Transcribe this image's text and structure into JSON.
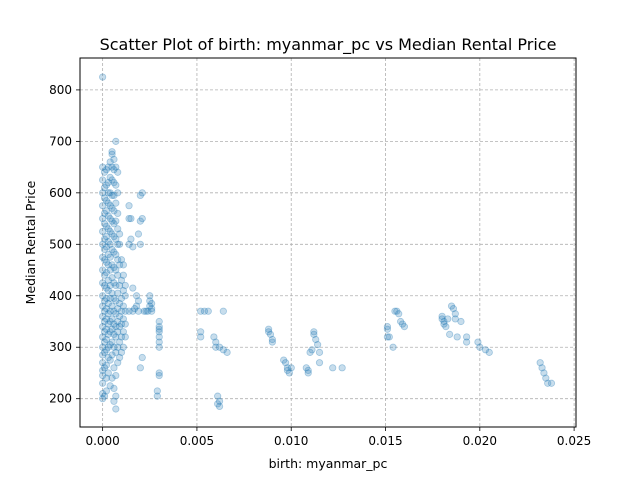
{
  "chart_data": {
    "type": "scatter",
    "title": "Scatter Plot of birth: myanmar_pc vs Median Rental Price",
    "xlabel": "birth: myanmar_pc",
    "ylabel": "Median Rental Price",
    "xlim": [
      -0.0012,
      0.0251
    ],
    "ylim": [
      145,
      862
    ],
    "xticks": [
      0.0,
      0.005,
      0.01,
      0.015,
      0.02,
      0.025
    ],
    "xtick_labels": [
      "0.000",
      "0.005",
      "0.010",
      "0.015",
      "0.020",
      "0.025"
    ],
    "yticks": [
      200,
      300,
      400,
      500,
      600,
      700,
      800
    ],
    "ytick_labels": [
      "200",
      "300",
      "400",
      "500",
      "600",
      "700",
      "800"
    ],
    "grid": true,
    "marker_color": "#1f77b4",
    "marker_alpha": 0.25,
    "series": [
      {
        "points": [
          [
            0.0,
            825
          ],
          [
            0.0,
            200
          ],
          [
            0.0,
            210
          ],
          [
            0.0,
            230
          ],
          [
            0.0,
            245
          ],
          [
            0.0,
            255
          ],
          [
            0.0,
            270
          ],
          [
            0.0,
            285
          ],
          [
            0.0,
            300
          ],
          [
            0.0,
            320
          ],
          [
            0.0,
            340
          ],
          [
            0.0,
            360
          ],
          [
            0.0,
            380
          ],
          [
            0.0,
            400
          ],
          [
            0.0,
            425
          ],
          [
            0.0,
            450
          ],
          [
            0.0,
            475
          ],
          [
            0.0,
            500
          ],
          [
            0.0,
            525
          ],
          [
            0.0,
            550
          ],
          [
            0.0,
            575
          ],
          [
            0.0,
            600
          ],
          [
            0.0,
            625
          ],
          [
            0.0,
            650
          ],
          [
            0.0001,
            205
          ],
          [
            0.0001,
            260
          ],
          [
            0.0001,
            290
          ],
          [
            0.0001,
            310
          ],
          [
            0.0001,
            330
          ],
          [
            0.0001,
            350
          ],
          [
            0.0001,
            370
          ],
          [
            0.0001,
            390
          ],
          [
            0.0001,
            420
          ],
          [
            0.0001,
            440
          ],
          [
            0.0001,
            470
          ],
          [
            0.0001,
            490
          ],
          [
            0.0001,
            510
          ],
          [
            0.0001,
            540
          ],
          [
            0.0001,
            560
          ],
          [
            0.0001,
            590
          ],
          [
            0.0001,
            610
          ],
          [
            0.0001,
            640
          ],
          [
            0.0002,
            215
          ],
          [
            0.0002,
            240
          ],
          [
            0.0002,
            265
          ],
          [
            0.0002,
            295
          ],
          [
            0.0002,
            315
          ],
          [
            0.0002,
            335
          ],
          [
            0.0002,
            355
          ],
          [
            0.0002,
            375
          ],
          [
            0.0002,
            395
          ],
          [
            0.0002,
            415
          ],
          [
            0.0002,
            445
          ],
          [
            0.0002,
            465
          ],
          [
            0.0002,
            495
          ],
          [
            0.0002,
            515
          ],
          [
            0.0002,
            535
          ],
          [
            0.0002,
            565
          ],
          [
            0.0002,
            585
          ],
          [
            0.0002,
            615
          ],
          [
            0.0002,
            645
          ],
          [
            0.0003,
            250
          ],
          [
            0.0003,
            280
          ],
          [
            0.0003,
            300
          ],
          [
            0.0003,
            325
          ],
          [
            0.0003,
            345
          ],
          [
            0.0003,
            365
          ],
          [
            0.0003,
            385
          ],
          [
            0.0003,
            410
          ],
          [
            0.0003,
            430
          ],
          [
            0.0003,
            460
          ],
          [
            0.0003,
            480
          ],
          [
            0.0003,
            505
          ],
          [
            0.0003,
            530
          ],
          [
            0.0003,
            555
          ],
          [
            0.0003,
            580
          ],
          [
            0.0003,
            600
          ],
          [
            0.0003,
            620
          ],
          [
            0.0003,
            650
          ],
          [
            0.0004,
            225
          ],
          [
            0.0004,
            275
          ],
          [
            0.0004,
            305
          ],
          [
            0.0004,
            330
          ],
          [
            0.0004,
            350
          ],
          [
            0.0004,
            370
          ],
          [
            0.0004,
            395
          ],
          [
            0.0004,
            420
          ],
          [
            0.0004,
            450
          ],
          [
            0.0004,
            475
          ],
          [
            0.0004,
            500
          ],
          [
            0.0004,
            525
          ],
          [
            0.0004,
            550
          ],
          [
            0.0004,
            575
          ],
          [
            0.0004,
            600
          ],
          [
            0.0004,
            630
          ],
          [
            0.0004,
            660
          ],
          [
            0.0005,
            240
          ],
          [
            0.0005,
            285
          ],
          [
            0.0005,
            310
          ],
          [
            0.0005,
            335
          ],
          [
            0.0005,
            355
          ],
          [
            0.0005,
            380
          ],
          [
            0.0005,
            405
          ],
          [
            0.0005,
            435
          ],
          [
            0.0005,
            460
          ],
          [
            0.0005,
            490
          ],
          [
            0.0005,
            520
          ],
          [
            0.0005,
            545
          ],
          [
            0.0005,
            570
          ],
          [
            0.0005,
            595
          ],
          [
            0.0005,
            625
          ],
          [
            0.0005,
            650
          ],
          [
            0.0005,
            675
          ],
          [
            0.0005,
            680
          ],
          [
            0.0006,
            195
          ],
          [
            0.0006,
            220
          ],
          [
            0.0006,
            260
          ],
          [
            0.0006,
            300
          ],
          [
            0.0006,
            325
          ],
          [
            0.0006,
            345
          ],
          [
            0.0006,
            370
          ],
          [
            0.0006,
            395
          ],
          [
            0.0006,
            425
          ],
          [
            0.0006,
            455
          ],
          [
            0.0006,
            485
          ],
          [
            0.0006,
            515
          ],
          [
            0.0006,
            540
          ],
          [
            0.0006,
            565
          ],
          [
            0.0006,
            595
          ],
          [
            0.0006,
            620
          ],
          [
            0.0006,
            645
          ],
          [
            0.0006,
            665
          ],
          [
            0.0007,
            180
          ],
          [
            0.0007,
            205
          ],
          [
            0.0007,
            245
          ],
          [
            0.0007,
            290
          ],
          [
            0.0007,
            320
          ],
          [
            0.0007,
            340
          ],
          [
            0.0007,
            365
          ],
          [
            0.0007,
            390
          ],
          [
            0.0007,
            420
          ],
          [
            0.0007,
            450
          ],
          [
            0.0007,
            480
          ],
          [
            0.0007,
            510
          ],
          [
            0.0007,
            545
          ],
          [
            0.0007,
            580
          ],
          [
            0.0007,
            615
          ],
          [
            0.0007,
            650
          ],
          [
            0.0007,
            700
          ],
          [
            0.0008,
            270
          ],
          [
            0.0008,
            300
          ],
          [
            0.0008,
            330
          ],
          [
            0.0008,
            350
          ],
          [
            0.0008,
            375
          ],
          [
            0.0008,
            405
          ],
          [
            0.0008,
            440
          ],
          [
            0.0008,
            470
          ],
          [
            0.0008,
            500
          ],
          [
            0.0008,
            530
          ],
          [
            0.0008,
            560
          ],
          [
            0.0008,
            600
          ],
          [
            0.0008,
            640
          ],
          [
            0.0009,
            280
          ],
          [
            0.0009,
            310
          ],
          [
            0.0009,
            340
          ],
          [
            0.0009,
            360
          ],
          [
            0.0009,
            385
          ],
          [
            0.0009,
            420
          ],
          [
            0.0009,
            460
          ],
          [
            0.0009,
            500
          ],
          [
            0.0009,
            520
          ],
          [
            0.001,
            290
          ],
          [
            0.001,
            320
          ],
          [
            0.001,
            345
          ],
          [
            0.001,
            370
          ],
          [
            0.001,
            395
          ],
          [
            0.001,
            430
          ],
          [
            0.001,
            470
          ],
          [
            0.0011,
            300
          ],
          [
            0.0011,
            330
          ],
          [
            0.0011,
            355
          ],
          [
            0.0011,
            380
          ],
          [
            0.0011,
            410
          ],
          [
            0.0011,
            440
          ],
          [
            0.0011,
            460
          ],
          [
            0.0012,
            320
          ],
          [
            0.0012,
            345
          ],
          [
            0.0012,
            370
          ],
          [
            0.0012,
            400
          ],
          [
            0.0012,
            420
          ],
          [
            0.0014,
            370
          ],
          [
            0.0014,
            550
          ],
          [
            0.0014,
            575
          ],
          [
            0.0014,
            500
          ],
          [
            0.0015,
            510
          ],
          [
            0.0015,
            550
          ],
          [
            0.0016,
            370
          ],
          [
            0.0016,
            415
          ],
          [
            0.0016,
            495
          ],
          [
            0.0017,
            375
          ],
          [
            0.0018,
            380
          ],
          [
            0.0018,
            400
          ],
          [
            0.0019,
            370
          ],
          [
            0.0019,
            390
          ],
          [
            0.0019,
            520
          ],
          [
            0.002,
            260
          ],
          [
            0.002,
            500
          ],
          [
            0.002,
            545
          ],
          [
            0.002,
            595
          ],
          [
            0.0021,
            280
          ],
          [
            0.0021,
            550
          ],
          [
            0.0021,
            600
          ],
          [
            0.0022,
            370
          ],
          [
            0.0023,
            370
          ],
          [
            0.0024,
            370
          ],
          [
            0.0025,
            380
          ],
          [
            0.0025,
            390
          ],
          [
            0.0025,
            400
          ],
          [
            0.0026,
            375
          ],
          [
            0.0026,
            385
          ],
          [
            0.0026,
            370
          ],
          [
            0.0029,
            215
          ],
          [
            0.0029,
            205
          ],
          [
            0.003,
            245
          ],
          [
            0.003,
            250
          ],
          [
            0.003,
            310
          ],
          [
            0.003,
            300
          ],
          [
            0.003,
            320
          ],
          [
            0.003,
            330
          ],
          [
            0.003,
            335
          ],
          [
            0.003,
            340
          ],
          [
            0.003,
            350
          ],
          [
            0.0052,
            330
          ],
          [
            0.0052,
            320
          ],
          [
            0.0052,
            370
          ],
          [
            0.0054,
            370
          ],
          [
            0.0056,
            370
          ],
          [
            0.0059,
            320
          ],
          [
            0.006,
            310
          ],
          [
            0.006,
            300
          ],
          [
            0.0061,
            205
          ],
          [
            0.0061,
            190
          ],
          [
            0.0062,
            195
          ],
          [
            0.0062,
            185
          ],
          [
            0.0062,
            300
          ],
          [
            0.0064,
            370
          ],
          [
            0.0064,
            295
          ],
          [
            0.0066,
            290
          ],
          [
            0.0088,
            330
          ],
          [
            0.0088,
            335
          ],
          [
            0.0089,
            325
          ],
          [
            0.009,
            315
          ],
          [
            0.009,
            310
          ],
          [
            0.0096,
            275
          ],
          [
            0.0097,
            270
          ],
          [
            0.0098,
            260
          ],
          [
            0.0098,
            255
          ],
          [
            0.0099,
            250
          ],
          [
            0.01,
            260
          ],
          [
            0.0108,
            260
          ],
          [
            0.0109,
            250
          ],
          [
            0.0109,
            255
          ],
          [
            0.011,
            290
          ],
          [
            0.0111,
            295
          ],
          [
            0.0112,
            330
          ],
          [
            0.0112,
            325
          ],
          [
            0.0113,
            315
          ],
          [
            0.0114,
            305
          ],
          [
            0.0115,
            290
          ],
          [
            0.0115,
            270
          ],
          [
            0.0122,
            260
          ],
          [
            0.0127,
            260
          ],
          [
            0.0151,
            340
          ],
          [
            0.0151,
            335
          ],
          [
            0.0151,
            320
          ],
          [
            0.0152,
            320
          ],
          [
            0.0154,
            300
          ],
          [
            0.0155,
            370
          ],
          [
            0.0156,
            370
          ],
          [
            0.0157,
            365
          ],
          [
            0.0158,
            350
          ],
          [
            0.0159,
            345
          ],
          [
            0.016,
            340
          ],
          [
            0.018,
            360
          ],
          [
            0.018,
            355
          ],
          [
            0.0181,
            350
          ],
          [
            0.0181,
            345
          ],
          [
            0.0182,
            340
          ],
          [
            0.0183,
            355
          ],
          [
            0.0184,
            325
          ],
          [
            0.0185,
            380
          ],
          [
            0.0186,
            375
          ],
          [
            0.0187,
            365
          ],
          [
            0.0187,
            355
          ],
          [
            0.0188,
            320
          ],
          [
            0.019,
            350
          ],
          [
            0.0193,
            320
          ],
          [
            0.0193,
            310
          ],
          [
            0.0199,
            310
          ],
          [
            0.02,
            300
          ],
          [
            0.0203,
            295
          ],
          [
            0.0205,
            290
          ],
          [
            0.0232,
            270
          ],
          [
            0.0233,
            260
          ],
          [
            0.0234,
            250
          ],
          [
            0.0235,
            240
          ],
          [
            0.0236,
            230
          ],
          [
            0.0238,
            230
          ]
        ]
      }
    ]
  }
}
